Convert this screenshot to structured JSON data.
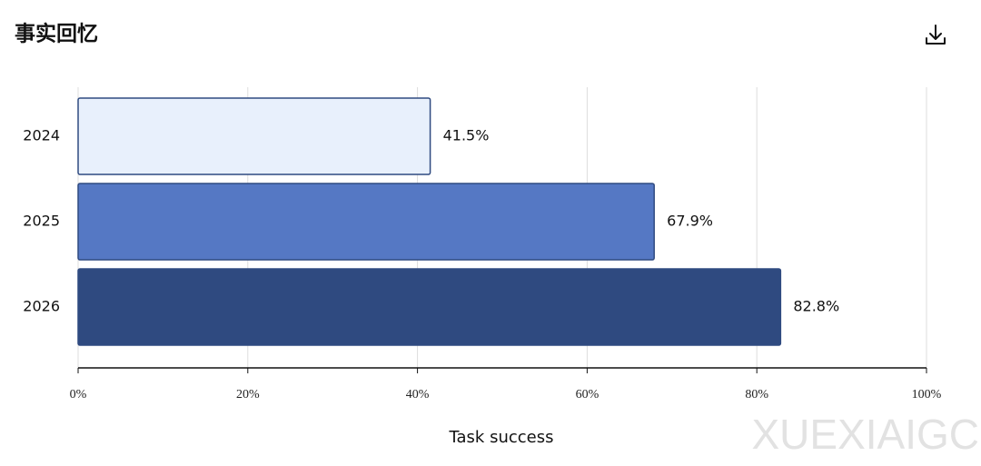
{
  "chart_data": {
    "type": "barh",
    "title": "事实回忆",
    "categories": [
      "2024",
      "2025",
      "2026"
    ],
    "values": [
      41.5,
      67.9,
      82.8
    ],
    "value_labels": [
      "41.5%",
      "67.9%",
      "82.8%"
    ],
    "colors": [
      "#e8f0fc",
      "#5578c4",
      "#2f4a80"
    ],
    "edge_color": "#2f4a80",
    "xlabel": "Task success",
    "xlim": [
      0,
      100
    ],
    "xticks": [
      {
        "value": 0,
        "label": "0%"
      },
      {
        "value": 20,
        "label": "20%"
      },
      {
        "value": 40,
        "label": "40%"
      },
      {
        "value": 60,
        "label": "60%"
      },
      {
        "value": 80,
        "label": "80%"
      },
      {
        "value": 100,
        "label": "100%"
      }
    ],
    "grid": true,
    "watermark": "XUEXIAIGC"
  }
}
